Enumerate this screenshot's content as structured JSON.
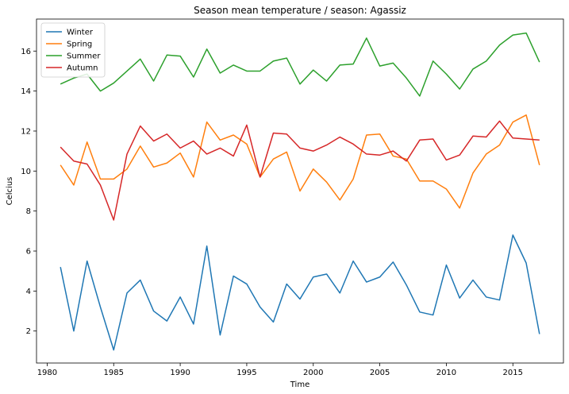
{
  "chart_data": {
    "type": "line",
    "title": "Season mean temperature / season: Agassiz",
    "xlabel": "Time",
    "ylabel": "Celcius",
    "xlim": [
      1979.2,
      2018.8
    ],
    "ylim": [
      0.4,
      17.6
    ],
    "xticks": [
      1980,
      1985,
      1990,
      1995,
      2000,
      2005,
      2010,
      2015
    ],
    "yticks": [
      2,
      4,
      6,
      8,
      10,
      12,
      14,
      16
    ],
    "grid": false,
    "legend_position": "top-left",
    "x": [
      1981,
      1982,
      1983,
      1984,
      1985,
      1986,
      1987,
      1988,
      1989,
      1990,
      1991,
      1992,
      1993,
      1994,
      1995,
      1996,
      1997,
      1998,
      1999,
      2000,
      2001,
      2002,
      2003,
      2004,
      2005,
      2006,
      2007,
      2008,
      2009,
      2010,
      2011,
      2012,
      2013,
      2014,
      2015,
      2016,
      2017
    ],
    "series": [
      {
        "name": "Winter",
        "color": "#1f77b4",
        "values": [
          5.2,
          2.0,
          5.5,
          3.2,
          1.05,
          3.9,
          4.55,
          3.0,
          2.5,
          3.7,
          2.35,
          6.25,
          1.8,
          4.75,
          4.35,
          3.2,
          2.45,
          4.35,
          3.6,
          4.7,
          4.85,
          3.9,
          5.5,
          4.45,
          4.7,
          5.45,
          4.3,
          2.95,
          2.8,
          5.3,
          3.65,
          4.55,
          3.7,
          3.55,
          6.8,
          5.4,
          1.85
        ]
      },
      {
        "name": "Spring",
        "color": "#ff7f0e",
        "values": [
          10.3,
          9.3,
          11.45,
          9.6,
          9.6,
          10.1,
          11.25,
          10.2,
          10.4,
          10.9,
          9.7,
          12.45,
          11.55,
          11.8,
          11.35,
          9.7,
          10.6,
          10.95,
          9.0,
          10.1,
          9.45,
          8.55,
          9.6,
          11.8,
          11.85,
          10.75,
          10.6,
          9.5,
          9.5,
          9.1,
          8.15,
          9.9,
          10.85,
          11.3,
          12.45,
          12.8,
          10.3
        ]
      },
      {
        "name": "Summer",
        "color": "#2ca02c",
        "values": [
          14.35,
          14.65,
          14.85,
          14.0,
          14.4,
          15.0,
          15.6,
          14.5,
          15.8,
          15.75,
          14.7,
          16.1,
          14.9,
          15.3,
          15.0,
          15.0,
          15.5,
          15.65,
          14.35,
          15.05,
          14.5,
          15.3,
          15.35,
          16.65,
          15.25,
          15.4,
          14.65,
          13.75,
          15.5,
          14.85,
          14.1,
          15.1,
          15.5,
          16.3,
          16.8,
          16.9,
          15.45
        ]
      },
      {
        "name": "Autumn",
        "color": "#d62728",
        "values": [
          11.2,
          10.5,
          10.35,
          9.3,
          7.55,
          10.85,
          12.25,
          11.5,
          11.85,
          11.15,
          11.5,
          10.85,
          11.15,
          10.75,
          12.3,
          9.7,
          11.9,
          11.85,
          11.15,
          11.0,
          11.3,
          11.7,
          11.35,
          10.85,
          10.8,
          11.0,
          10.5,
          11.55,
          11.6,
          10.55,
          10.8,
          11.75,
          11.7,
          12.5,
          11.65,
          11.6,
          11.55
        ]
      }
    ]
  }
}
